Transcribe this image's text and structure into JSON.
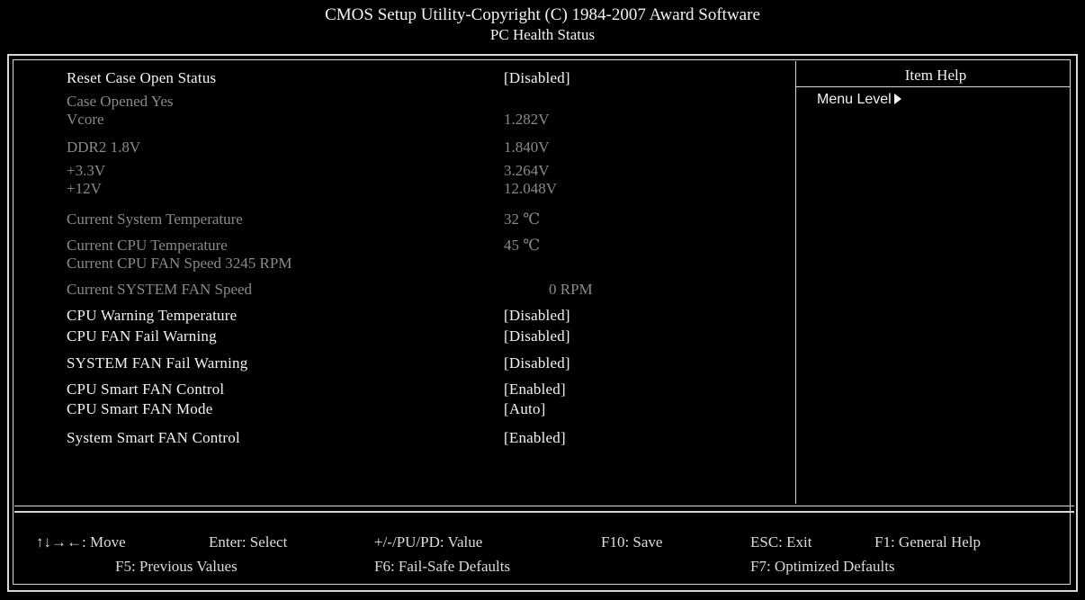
{
  "header": {
    "title": "CMOS Setup Utility-Copyright (C) 1984-2007 Award Software",
    "subtitle": "PC Health Status"
  },
  "settings": [
    {
      "label": "Reset Case Open Status",
      "value": "[Disabled]",
      "state": "active"
    },
    {
      "label": "Case Opened Yes",
      "value": "",
      "state": "dim"
    },
    {
      "label": "Vcore",
      "value": "1.282V",
      "state": "dim"
    },
    {
      "label": "DDR2 1.8V",
      "value": "1.840V",
      "state": "dim"
    },
    {
      "label": "+3.3V",
      "value": "3.264V",
      "state": "dim"
    },
    {
      "label": "+12V",
      "value": "12.048V",
      "state": "dim"
    },
    {
      "label": "Current System Temperature",
      "value": "32 ℃",
      "state": "dim"
    },
    {
      "label": "Current CPU Temperature",
      "value": "45 ℃",
      "state": "dim"
    },
    {
      "label": "Current CPU FAN Speed 3245 RPM",
      "value": "",
      "state": "dim"
    },
    {
      "label": "Current SYSTEM FAN Speed",
      "value": "0 RPM",
      "state": "dim"
    },
    {
      "label": "CPU Warning Temperature",
      "value": "[Disabled]",
      "state": "active"
    },
    {
      "label": "CPU FAN Fail Warning",
      "value": "[Disabled]",
      "state": "active"
    },
    {
      "label": "SYSTEM FAN Fail Warning",
      "value": "[Disabled]",
      "state": "active"
    },
    {
      "label": "CPU Smart FAN Control",
      "value": "[Enabled]",
      "state": "active"
    },
    {
      "label": "CPU Smart FAN Mode",
      "value": "[Auto]",
      "state": "active"
    },
    {
      "label": "System Smart FAN Control",
      "value": "[Enabled]",
      "state": "active"
    }
  ],
  "help": {
    "title": "Item Help",
    "menu_level": "Menu Level"
  },
  "footer": {
    "move": "↑↓→←: Move",
    "enter": "Enter: Select",
    "value": "+/-/PU/PD: Value",
    "save": "F10: Save",
    "exit": "ESC: Exit",
    "general_help": "F1: General Help",
    "previous": "F5: Previous Values",
    "failsafe": "F6: Fail-Safe Defaults",
    "optimized": "F7: Optimized Defaults"
  }
}
